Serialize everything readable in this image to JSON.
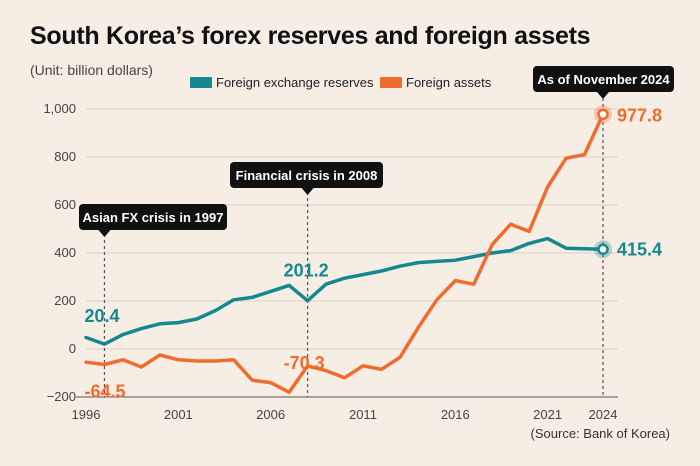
{
  "title": "South Korea’s forex reserves and foreign assets",
  "unit_note": "(Unit: billion dollars)",
  "source": "(Source: Bank of Korea)",
  "chart_data": {
    "type": "line",
    "title": "South Korea’s forex reserves and foreign assets",
    "xlabel": "",
    "ylabel": "",
    "xlim": [
      1996,
      2024
    ],
    "ylim": [
      -200,
      1000
    ],
    "x_ticks": [
      1996,
      2001,
      2006,
      2011,
      2016,
      2021,
      2024
    ],
    "y_ticks": [
      -200,
      0,
      200,
      400,
      600,
      800,
      1000
    ],
    "y_tick_labels": [
      "−200",
      "0",
      "200",
      "400",
      "600",
      "800",
      "1,000"
    ],
    "grid": true,
    "legend_position": "top",
    "series": [
      {
        "name": "Foreign exchange reserves",
        "color": "#15888f",
        "x": [
          1996,
          1997,
          1998,
          1999,
          2000,
          2001,
          2002,
          2003,
          2004,
          2005,
          2006,
          2007,
          2008,
          2009,
          2010,
          2011,
          2012,
          2013,
          2014,
          2015,
          2016,
          2017,
          2018,
          2019,
          2020,
          2021,
          2022,
          2023,
          2024
        ],
        "values": [
          48,
          20.4,
          60,
          85,
          105,
          110,
          125,
          160,
          205,
          215,
          240,
          265,
          201.2,
          270,
          295,
          310,
          325,
          345,
          360,
          365,
          370,
          385,
          400,
          410,
          440,
          460,
          420,
          418,
          415.4
        ]
      },
      {
        "name": "Foreign assets",
        "color": "#f26b2e",
        "x": [
          1996,
          1997,
          1998,
          1999,
          2000,
          2001,
          2002,
          2003,
          2004,
          2005,
          2006,
          2007,
          2008,
          2009,
          2010,
          2011,
          2012,
          2013,
          2014,
          2015,
          2016,
          2017,
          2018,
          2019,
          2020,
          2021,
          2022,
          2023,
          2024
        ],
        "values": [
          -55,
          -64.5,
          -45,
          -75,
          -25,
          -45,
          -50,
          -50,
          -45,
          -130,
          -140,
          -180,
          -70.3,
          -90,
          -120,
          -70,
          -85,
          -35,
          90,
          205,
          285,
          270,
          435,
          520,
          490,
          675,
          795,
          810,
          977.8
        ]
      }
    ],
    "annotations": [
      {
        "text": "Asian FX crisis in 1997",
        "x": 1997
      },
      {
        "text": "Financial crisis in 2008",
        "x": 2008
      },
      {
        "text": "As of November 2024",
        "x": 2024
      }
    ],
    "value_labels": [
      {
        "text": "20.4",
        "series": "Foreign exchange reserves",
        "x": 1997,
        "y": 20.4
      },
      {
        "text": "-64.5",
        "series": "Foreign assets",
        "x": 1997,
        "y": -64.5
      },
      {
        "text": "201.2",
        "series": "Foreign exchange reserves",
        "x": 2008,
        "y": 201.2
      },
      {
        "text": "-70.3",
        "series": "Foreign assets",
        "x": 2008,
        "y": -70.3
      },
      {
        "text": "977.8",
        "series": "Foreign assets",
        "x": 2024,
        "y": 977.8
      },
      {
        "text": "415.4",
        "series": "Foreign exchange reserves",
        "x": 2024,
        "y": 415.4
      }
    ]
  }
}
